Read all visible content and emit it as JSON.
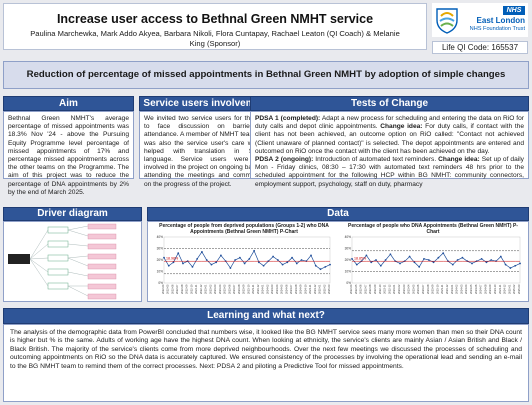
{
  "header": {
    "title": "Increase user access to Bethnal Green NMHT service",
    "authors": "Paulina Marchewka, Mark Addo Akyea, Barbara Nikoli, Flora Cuntapay, Rachael Leaton (QI Coach) & Melanie King (Sponsor)"
  },
  "logo": {
    "badge": "NHS",
    "name": "East London",
    "trust": "NHS Foundation Trust"
  },
  "lifeqi": "Life QI Code: 165537",
  "subtitle": "Reduction of percentage of missed appointments in Bethnal Green NMHT by adoption of simple changes",
  "aim": {
    "heading": "Aim",
    "text": "Bethnal Green NMHT's average percentage of missed appointments was 18.3% Nov '24 - above the Pursuing Equity Programme level percentage of missed appointments of 17% and percentage missed appointments across the other teams on the Programme. The aim of this project was to reduce the percentage of DNA appointments by 2% by the end of March 2025."
  },
  "service_users": {
    "heading": "Service users involvement",
    "text": "We invited two service users for the face to face discussion on barriers to attendance. A member of NMHT team who was also the service user's care worker, helped with translation in Somali language. Service users were then involved in the project on ongoing basis by attending the meetings and commenting on the progress of the project."
  },
  "tests": {
    "heading": "Tests of Change",
    "p1_label": "PDSA 1 (completed):",
    "p1_text": " Adapt a new process for scheduling and entering the data on RiO for duty calls and depot clinic appointments. ",
    "p1_change_label": "Change idea:",
    "p1_change_text": " For duty calls, if contact with the client has not been achieved, an outcome option on RiO called: \"Contact not achieved (Client unaware of planned contact)\" is selected. The depot appointments are entered and outcomed on RiO once the contact with the client has been achieved on the day.",
    "p2_label": "PDSA 2 (ongoing):",
    "p2_text": " Introduction of automated text reminders. ",
    "p2_change_label": "Change idea:",
    "p2_change_text": " Set up of daily Mon - Friday clinics, 08:30 – 17:30 with automated text reminders 48 hrs prior to the scheduled appointment for the following HCP within BG NMHT: community connectors, employment support, psychology, staff on duty, pharmacy"
  },
  "driver": {
    "heading": "Driver diagram"
  },
  "data_section": {
    "heading": "Data"
  },
  "chart_data": [
    {
      "type": "line",
      "title": "Percentage of people from deprived populations (Groups 1-2) who DNA Appointments (Bethnal Green NMHT) P-Chart",
      "ylabel": "",
      "ylim": [
        0,
        40
      ],
      "mean_label": "18.98%",
      "x": [
        "2022-04",
        "2022-05",
        "2022-06",
        "2022-07",
        "2022-08",
        "2022-09",
        "2022-10",
        "2022-11",
        "2022-12",
        "2023-01",
        "2023-02",
        "2023-03",
        "2023-04",
        "2023-05",
        "2023-06",
        "2023-07",
        "2023-08",
        "2023-09",
        "2023-10",
        "2023-11",
        "2023-12",
        "2024-01",
        "2024-02",
        "2024-03",
        "2024-04",
        "2024-05",
        "2024-06",
        "2024-07",
        "2024-08",
        "2024-09",
        "2024-10",
        "2024-11",
        "2024-12",
        "2025-01",
        "2025-02",
        "2025-03"
      ],
      "series": [
        {
          "values": [
            22,
            15,
            18,
            26,
            17,
            19,
            14,
            21,
            27,
            20,
            16,
            18,
            24,
            19,
            13,
            20,
            22,
            17,
            21,
            28,
            18,
            15,
            19,
            23,
            20,
            16,
            18,
            22,
            17,
            20,
            19,
            24,
            15,
            12,
            14,
            16
          ]
        },
        {
          "values": [
            30,
            30,
            30,
            30,
            30,
            30,
            30,
            30,
            30,
            30,
            30,
            30,
            30,
            30,
            30,
            30,
            30,
            30,
            30,
            30,
            30,
            30,
            30,
            30,
            30,
            30,
            30,
            30,
            30,
            30,
            30,
            30,
            30,
            30,
            30,
            30
          ]
        },
        {
          "values": [
            19,
            19,
            19,
            19,
            19,
            19,
            19,
            19,
            19,
            19,
            19,
            19,
            19,
            19,
            19,
            19,
            19,
            19,
            19,
            19,
            19,
            19,
            19,
            19,
            19,
            19,
            19,
            19,
            19,
            19,
            19,
            19,
            19,
            19,
            19,
            19
          ]
        },
        {
          "values": [
            8,
            8,
            8,
            8,
            8,
            8,
            8,
            8,
            8,
            8,
            8,
            8,
            8,
            8,
            8,
            8,
            8,
            8,
            8,
            8,
            8,
            8,
            8,
            8,
            8,
            8,
            8,
            8,
            8,
            8,
            8,
            8,
            8,
            8,
            8,
            8
          ]
        }
      ]
    },
    {
      "type": "line",
      "title": "Percentage of people who DNA Appointments (Bethnal Green NMHT) P-Chart",
      "ylabel": "",
      "ylim": [
        0,
        40
      ],
      "mean_label": "18.85%",
      "x": [
        "2022-04",
        "2022-05",
        "2022-06",
        "2022-07",
        "2022-08",
        "2022-09",
        "2022-10",
        "2022-11",
        "2022-12",
        "2023-01",
        "2023-02",
        "2023-03",
        "2023-04",
        "2023-05",
        "2023-06",
        "2023-07",
        "2023-08",
        "2023-09",
        "2023-10",
        "2023-11",
        "2023-12",
        "2024-01",
        "2024-02",
        "2024-03",
        "2024-04",
        "2024-05",
        "2024-06",
        "2024-07",
        "2024-08",
        "2024-09",
        "2024-10",
        "2024-11",
        "2024-12",
        "2025-01",
        "2025-02",
        "2025-03"
      ],
      "series": [
        {
          "values": [
            21,
            16,
            19,
            24,
            18,
            20,
            15,
            20,
            25,
            19,
            17,
            19,
            23,
            18,
            14,
            21,
            20,
            18,
            22,
            26,
            19,
            16,
            20,
            22,
            19,
            17,
            19,
            21,
            18,
            20,
            19,
            23,
            16,
            13,
            15,
            17
          ]
        },
        {
          "values": [
            28,
            28,
            28,
            28,
            28,
            28,
            28,
            28,
            28,
            28,
            28,
            28,
            28,
            28,
            28,
            28,
            28,
            28,
            28,
            28,
            28,
            28,
            28,
            28,
            28,
            28,
            28,
            28,
            28,
            28,
            28,
            28,
            28,
            28,
            28,
            28
          ]
        },
        {
          "values": [
            19,
            19,
            19,
            19,
            19,
            19,
            19,
            19,
            19,
            19,
            19,
            19,
            19,
            19,
            19,
            19,
            19,
            19,
            19,
            19,
            19,
            19,
            19,
            19,
            19,
            19,
            19,
            19,
            19,
            19,
            19,
            19,
            19,
            19,
            19,
            19
          ]
        },
        {
          "values": [
            10,
            10,
            10,
            10,
            10,
            10,
            10,
            10,
            10,
            10,
            10,
            10,
            10,
            10,
            10,
            10,
            10,
            10,
            10,
            10,
            10,
            10,
            10,
            10,
            10,
            10,
            10,
            10,
            10,
            10,
            10,
            10,
            10,
            10,
            10,
            10
          ]
        }
      ]
    }
  ],
  "learning": {
    "heading": "Learning and what next?",
    "text": "The analysis of the demographic data from PowerBI concluded that numbers wise, it looked like the BG NMHT service sees many more women than men so their DNA count is higher but % is the same. Adults of working age have the highest DNA count. When looking at ethnicity, the service's clients are mainly Asian / Asian British and Black / Black British. The majority of the service's clients come from more deprived neighbourhoods. Over the next few meetings we discussed the processes of scheduling and outcoming appointments on RiO so the DNA data is accurately captured. We ensured consistency of the processes by involving the operational lead and sending an e-mail to the BG NMHT team to remind them of the correct processes. Next: PDSA 2 and piloting a Predictive Tool for missed appointments."
  },
  "colors": {
    "header_blue": "#2f5597",
    "nhs_blue": "#005eb8",
    "subtitle_bg": "#d7dcec"
  }
}
